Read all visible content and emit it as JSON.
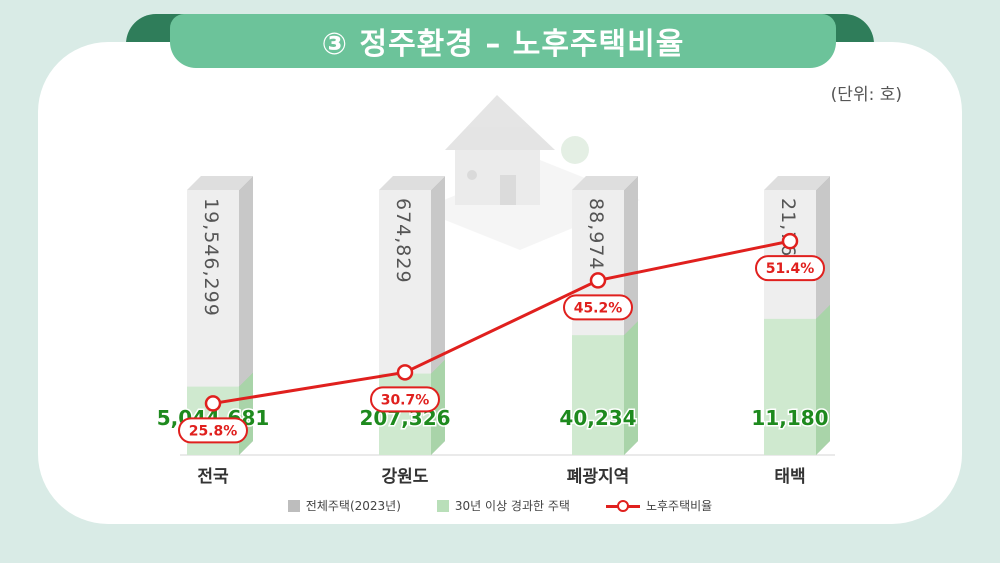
{
  "banner": {
    "title": "③ 정주환경 – 노후주택비율"
  },
  "unit_label": "(단위: 호)",
  "colors": {
    "total": "#eeeeee",
    "old": "#cfe9cf",
    "ratio_line": "#e0201e",
    "old_value_text": "#1e8a1e"
  },
  "chart_data": {
    "type": "bar",
    "categories": [
      "전국",
      "강원도",
      "폐광지역",
      "태백"
    ],
    "series": [
      {
        "name": "전체주택(2023년)",
        "values": [
          19546299,
          674829,
          88974,
          21764
        ],
        "labels": [
          "19,546,299",
          "674,829",
          "88,974",
          "21,764"
        ]
      },
      {
        "name": "30년 이상 경과한 주택",
        "values": [
          5044681,
          207326,
          40234,
          11180
        ],
        "labels": [
          "5,044,681",
          "207,326",
          "40,234",
          "11,180"
        ]
      },
      {
        "name": "노후주택비율",
        "type": "line",
        "values": [
          25.8,
          30.7,
          45.2,
          51.4
        ],
        "labels": [
          "25.8%",
          "30.7%",
          "45.2%",
          "51.4%"
        ]
      }
    ]
  },
  "legend": [
    {
      "label": "전체주택(2023년)",
      "icon": "gray-square"
    },
    {
      "label": "30년 이상 경과한 주택",
      "icon": "green-square"
    },
    {
      "label": "노후주택비율",
      "icon": "red-line-circle"
    }
  ]
}
